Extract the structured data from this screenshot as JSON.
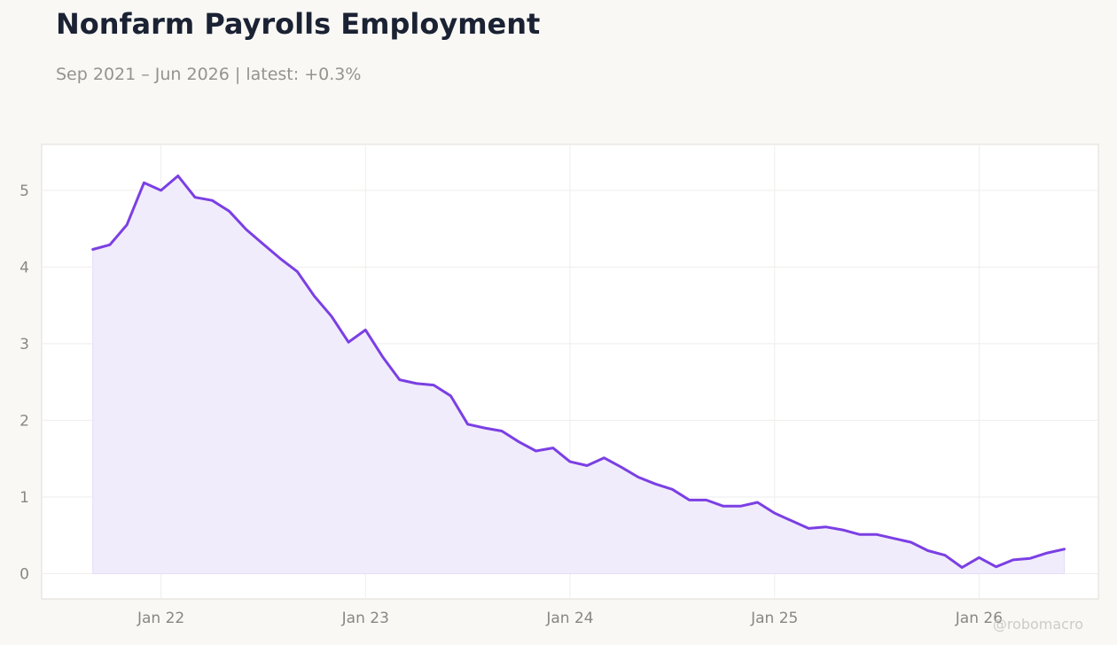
{
  "page": {
    "title": "Nonfarm Payrolls Employment",
    "subtitle": "Sep 2021 – Jun 2026 | latest: +0.3%",
    "watermark": "@robomacro"
  },
  "colors": {
    "line": "#7b3fe4",
    "fill": "#f1ecfb",
    "background": "#f9f8f5",
    "plot_background": "#ffffff",
    "grid": "#efeeec",
    "border": "#e0ddd7"
  },
  "chart_data": {
    "type": "area",
    "title": "Nonfarm Payrolls Employment",
    "subtitle": "Sep 2021 – Jun 2026 | latest: +0.3%",
    "x": [
      "2021-09",
      "2021-10",
      "2021-11",
      "2021-12",
      "2022-01",
      "2022-02",
      "2022-03",
      "2022-04",
      "2022-05",
      "2022-06",
      "2022-07",
      "2022-08",
      "2022-09",
      "2022-10",
      "2022-11",
      "2022-12",
      "2023-01",
      "2023-02",
      "2023-03",
      "2023-04",
      "2023-05",
      "2023-06",
      "2023-07",
      "2023-08",
      "2023-09",
      "2023-10",
      "2023-11",
      "2023-12",
      "2024-01",
      "2024-02",
      "2024-03",
      "2024-04",
      "2024-05",
      "2024-06",
      "2024-07",
      "2024-08",
      "2024-09",
      "2024-10",
      "2024-11",
      "2024-12",
      "2025-01",
      "2025-02",
      "2025-03",
      "2025-04",
      "2025-05",
      "2025-06",
      "2025-07",
      "2025-08",
      "2025-09",
      "2025-10",
      "2025-11",
      "2025-12",
      "2026-01",
      "2026-02",
      "2026-03",
      "2026-04",
      "2026-05",
      "2026-06"
    ],
    "y": [
      4.23,
      4.29,
      4.55,
      5.1,
      5.0,
      5.19,
      4.91,
      4.87,
      4.73,
      4.49,
      4.3,
      4.11,
      3.94,
      3.62,
      3.36,
      3.02,
      3.18,
      2.83,
      2.53,
      2.48,
      2.46,
      2.32,
      1.95,
      1.9,
      1.86,
      1.72,
      1.6,
      1.64,
      1.46,
      1.41,
      1.51,
      1.39,
      1.26,
      1.17,
      1.1,
      0.96,
      0.96,
      0.88,
      0.88,
      0.93,
      0.79,
      0.69,
      0.59,
      0.61,
      0.57,
      0.51,
      0.51,
      0.46,
      0.41,
      0.3,
      0.24,
      0.08,
      0.21,
      0.09,
      0.18,
      0.2,
      0.27,
      0.32
    ],
    "x_ticks": [
      {
        "date": "2022-01",
        "label": "Jan 22"
      },
      {
        "date": "2023-01",
        "label": "Jan 23"
      },
      {
        "date": "2024-01",
        "label": "Jan 24"
      },
      {
        "date": "2025-01",
        "label": "Jan 25"
      },
      {
        "date": "2026-01",
        "label": "Jan 26"
      }
    ],
    "y_ticks": [
      0,
      1,
      2,
      3,
      4,
      5
    ],
    "xlim": [
      "2021-06",
      "2026-08"
    ],
    "ylim": [
      -0.33,
      5.6
    ],
    "grid": true,
    "legend": "none"
  }
}
